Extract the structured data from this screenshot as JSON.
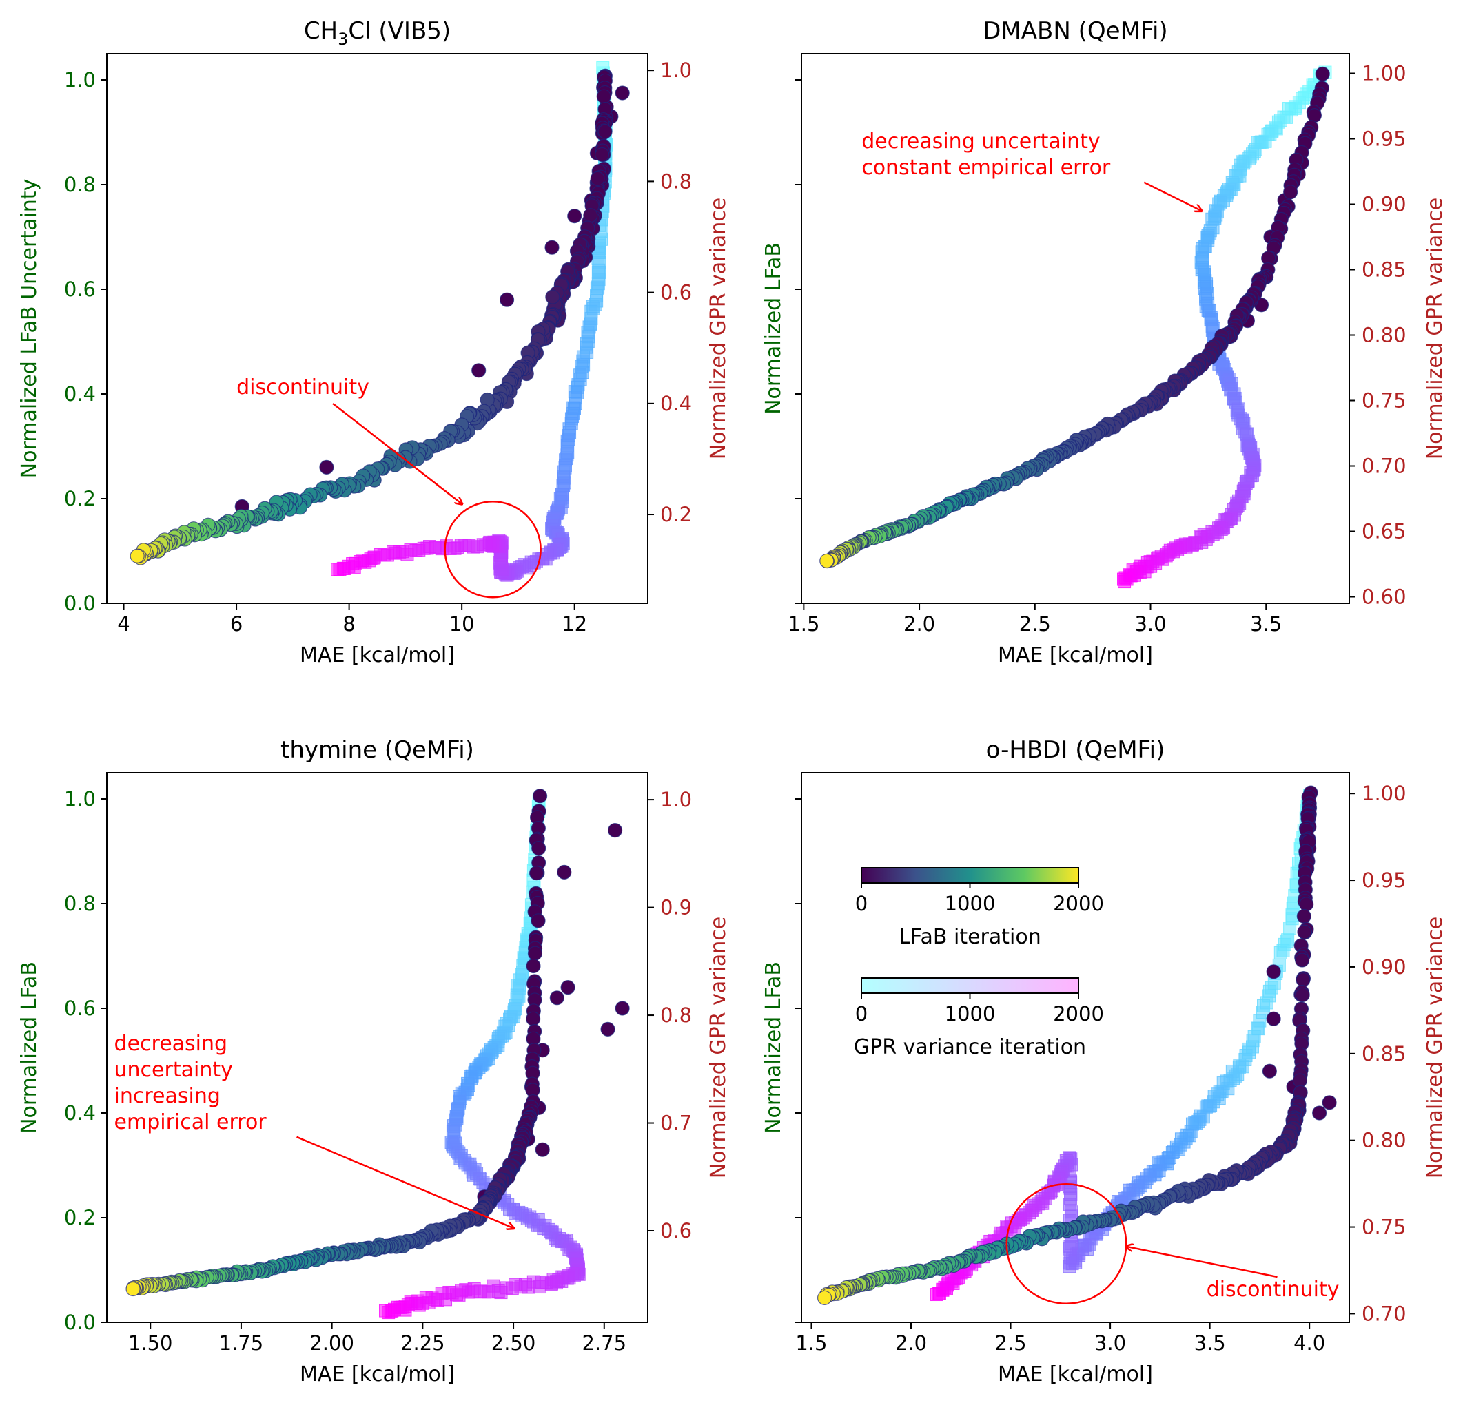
{
  "figure": {
    "colors": {
      "left_axis": "#006400",
      "right_axis": "#b22222",
      "annotation": "#ff0000",
      "lfab_cmap": [
        "#440154",
        "#3b528b",
        "#21918c",
        "#5ec962",
        "#fde725"
      ],
      "gpr_cmap": [
        "#b3ffff",
        "#ffb3ff"
      ],
      "gpr_square_cmap": [
        "#6fffff",
        "#50a0ff",
        "#9b59ff",
        "#ff00ff"
      ]
    },
    "colorbars": {
      "lfab": {
        "label": "LFaB iteration",
        "ticks": [
          "0",
          "1000",
          "2000"
        ],
        "range": [
          0,
          2000
        ]
      },
      "gpr": {
        "label": "GPR variance iteration",
        "ticks": [
          "0",
          "1000",
          "2000"
        ],
        "range": [
          0,
          2000
        ]
      }
    }
  },
  "chart_data": [
    {
      "type": "scatter",
      "title_main": "CH",
      "title_sub": "3",
      "title_rest": "Cl (VIB5)",
      "xlabel": "MAE [kcal/mol]",
      "ylabel": "Normalized LFaB Uncertainty",
      "ylabel_right": "Normalized GPR variance",
      "xlim": [
        3.7,
        13.3
      ],
      "ylim": [
        0.0,
        1.05
      ],
      "yrlim": [
        0.04,
        1.03
      ],
      "xticks": [
        4,
        6,
        8,
        10,
        12
      ],
      "xticklabels": [
        "4",
        "6",
        "8",
        "10",
        "12"
      ],
      "yticks": [
        0.0,
        0.2,
        0.4,
        0.6,
        0.8,
        1.0
      ],
      "yticklabels": [
        "0.0",
        "0.2",
        "0.4",
        "0.6",
        "0.8",
        "1.0"
      ],
      "show_left_ticklabels": true,
      "yrticks": [
        0.2,
        0.4,
        0.6,
        0.8,
        1.0
      ],
      "yrticklabels": [
        "0.2",
        "0.4",
        "0.6",
        "0.8",
        "1.0"
      ],
      "lfab_series": {
        "name": "LFaB iteration",
        "anchors": [
          [
            12.55,
            1.0
          ],
          [
            12.5,
            0.84
          ],
          [
            12.2,
            0.68
          ],
          [
            11.8,
            0.6
          ],
          [
            11.5,
            0.52
          ],
          [
            10.8,
            0.4
          ],
          [
            10.0,
            0.33
          ],
          [
            8.5,
            0.25
          ],
          [
            7.0,
            0.19
          ],
          [
            6.0,
            0.155
          ],
          [
            5.0,
            0.125
          ],
          [
            4.25,
            0.09
          ]
        ],
        "scatter": 0.035,
        "outliers": [
          [
            12.85,
            0.975
          ],
          [
            12.65,
            0.93
          ],
          [
            12.4,
            0.86
          ],
          [
            12.3,
            0.77
          ],
          [
            12.0,
            0.74
          ],
          [
            11.6,
            0.68
          ],
          [
            10.8,
            0.58
          ],
          [
            10.3,
            0.445
          ],
          [
            7.6,
            0.26
          ],
          [
            6.1,
            0.185
          ]
        ]
      },
      "gpr_series": {
        "name": "GPR variance iteration",
        "anchors": [
          [
            12.5,
            1.0
          ],
          [
            12.55,
            0.9
          ],
          [
            12.55,
            0.82
          ],
          [
            12.45,
            0.7
          ],
          [
            12.4,
            0.6
          ],
          [
            12.2,
            0.5
          ],
          [
            12.0,
            0.4
          ],
          [
            11.85,
            0.3
          ],
          [
            11.75,
            0.22
          ],
          [
            11.6,
            0.18
          ],
          [
            11.8,
            0.15
          ],
          [
            11.6,
            0.13
          ],
          [
            11.0,
            0.1
          ],
          [
            10.7,
            0.093
          ],
          [
            10.7,
            0.15
          ],
          [
            10.5,
            0.145
          ],
          [
            9.5,
            0.14
          ],
          [
            8.5,
            0.125
          ],
          [
            7.8,
            0.1
          ]
        ],
        "scatter": 0.008
      },
      "annotations": [
        {
          "text": [
            "discontinuity"
          ],
          "x": 6.0,
          "y": 0.4,
          "arrow_to": [
            10.0,
            0.19
          ],
          "align": "start"
        }
      ],
      "circle": {
        "cx": 10.55,
        "cy": 0.103,
        "r_x": 0.85
      }
    },
    {
      "type": "scatter",
      "title_main": "DMABN (QeMFi)",
      "title_sub": "",
      "title_rest": "",
      "xlabel": "MAE [kcal/mol]",
      "ylabel": "Normalized LFaB",
      "ylabel_right": "Normalized GPR variance",
      "xlim": [
        1.49,
        3.86
      ],
      "ylim": [
        0.0,
        1.05
      ],
      "yrlim": [
        0.595,
        1.015
      ],
      "xticks": [
        1.5,
        2.0,
        2.5,
        3.0,
        3.5
      ],
      "xticklabels": [
        "1.5",
        "2.0",
        "2.5",
        "3.0",
        "3.5"
      ],
      "yticks": [
        0.0,
        0.2,
        0.4,
        0.6,
        0.8,
        1.0
      ],
      "yticklabels": [
        "",
        "",
        "",
        "",
        "",
        ""
      ],
      "show_left_ticklabels": false,
      "yrticks": [
        0.6,
        0.65,
        0.7,
        0.75,
        0.8,
        0.85,
        0.9,
        0.95,
        1.0
      ],
      "yrticklabels": [
        "0.60",
        "0.65",
        "0.70",
        "0.75",
        "0.80",
        "0.85",
        "0.90",
        "0.95",
        "1.00"
      ],
      "lfab_series": {
        "name": "LFaB iteration",
        "anchors": [
          [
            3.75,
            1.0
          ],
          [
            3.5,
            0.63
          ],
          [
            3.35,
            0.52
          ],
          [
            3.2,
            0.45
          ],
          [
            3.0,
            0.38
          ],
          [
            2.7,
            0.31
          ],
          [
            2.5,
            0.26
          ],
          [
            2.2,
            0.2
          ],
          [
            1.95,
            0.15
          ],
          [
            1.75,
            0.12
          ],
          [
            1.6,
            0.08
          ]
        ],
        "scatter": 0.012,
        "outliers": [
          [
            3.64,
            0.82
          ],
          [
            3.58,
            0.77
          ],
          [
            3.52,
            0.7
          ],
          [
            3.48,
            0.57
          ],
          [
            3.42,
            0.54
          ]
        ]
      },
      "gpr_series": {
        "name": "GPR variance iteration",
        "anchors": [
          [
            3.75,
            1.0
          ],
          [
            3.55,
            0.96
          ],
          [
            3.4,
            0.93
          ],
          [
            3.3,
            0.9
          ],
          [
            3.22,
            0.86
          ],
          [
            3.25,
            0.82
          ],
          [
            3.3,
            0.78
          ],
          [
            3.35,
            0.76
          ],
          [
            3.42,
            0.72
          ],
          [
            3.45,
            0.7
          ],
          [
            3.38,
            0.67
          ],
          [
            3.3,
            0.65
          ],
          [
            3.15,
            0.64
          ],
          [
            3.0,
            0.625
          ],
          [
            2.88,
            0.613
          ]
        ],
        "scatter": 0.005
      },
      "annotations": [
        {
          "text": [
            "decreasing uncertainty",
            "constant empirical error"
          ],
          "x": 1.75,
          "y": 0.87,
          "arrow_to": [
            3.22,
            0.75
          ],
          "align": "start"
        }
      ],
      "circle": null
    },
    {
      "type": "scatter",
      "title_main": "thymine (QeMFi)",
      "title_sub": "",
      "title_rest": "",
      "xlabel": "MAE [kcal/mol]",
      "ylabel": "Normalized LFaB",
      "ylabel_right": "Normalized GPR variance",
      "xlim": [
        1.38,
        2.87
      ],
      "ylim": [
        0.0,
        1.05
      ],
      "yrlim": [
        0.515,
        1.025
      ],
      "xticks": [
        1.5,
        1.75,
        2.0,
        2.25,
        2.5,
        2.75
      ],
      "xticklabels": [
        "1.50",
        "1.75",
        "2.00",
        "2.25",
        "2.50",
        "2.75"
      ],
      "yticks": [
        0.0,
        0.2,
        0.4,
        0.6,
        0.8,
        1.0
      ],
      "yticklabels": [
        "0.0",
        "0.2",
        "0.4",
        "0.6",
        "0.8",
        "1.0"
      ],
      "show_left_ticklabels": true,
      "yrticks": [
        0.6,
        0.7,
        0.8,
        0.9,
        1.0
      ],
      "yrticklabels": [
        "0.6",
        "0.7",
        "0.8",
        "0.9",
        "1.0"
      ],
      "lfab_series": {
        "name": "LFaB iteration",
        "anchors": [
          [
            2.57,
            1.0
          ],
          [
            2.55,
            0.4
          ],
          [
            2.5,
            0.3
          ],
          [
            2.45,
            0.25
          ],
          [
            2.4,
            0.2
          ],
          [
            2.2,
            0.15
          ],
          [
            2.0,
            0.13
          ],
          [
            1.8,
            0.1
          ],
          [
            1.6,
            0.08
          ],
          [
            1.45,
            0.065
          ]
        ],
        "scatter": 0.012,
        "outliers": [
          [
            2.78,
            0.94
          ],
          [
            2.8,
            0.6
          ],
          [
            2.64,
            0.86
          ],
          [
            2.65,
            0.64
          ],
          [
            2.62,
            0.62
          ],
          [
            2.76,
            0.56
          ],
          [
            2.58,
            0.52
          ],
          [
            2.55,
            0.45
          ],
          [
            2.54,
            0.35
          ],
          [
            2.58,
            0.33
          ],
          [
            2.57,
            0.41
          ],
          [
            2.42,
            0.24
          ]
        ]
      },
      "gpr_series": {
        "name": "GPR variance iteration",
        "anchors": [
          [
            2.57,
            1.0
          ],
          [
            2.55,
            0.89
          ],
          [
            2.53,
            0.85
          ],
          [
            2.5,
            0.8
          ],
          [
            2.45,
            0.77
          ],
          [
            2.4,
            0.75
          ],
          [
            2.35,
            0.72
          ],
          [
            2.33,
            0.68
          ],
          [
            2.4,
            0.65
          ],
          [
            2.5,
            0.62
          ],
          [
            2.6,
            0.6
          ],
          [
            2.67,
            0.58
          ],
          [
            2.68,
            0.56
          ],
          [
            2.6,
            0.55
          ],
          [
            2.4,
            0.545
          ],
          [
            2.25,
            0.535
          ],
          [
            2.15,
            0.525
          ]
        ],
        "scatter": 0.005
      },
      "annotations": [
        {
          "text": [
            "decreasing",
            "uncertainty",
            "increasing",
            "empirical error"
          ],
          "x": 1.4,
          "y": 0.52,
          "arrow_to": [
            2.5,
            0.18
          ],
          "align": "start"
        }
      ],
      "circle": null
    },
    {
      "type": "scatter",
      "title_main": "o-HBDI (QeMFi)",
      "title_sub": "",
      "title_rest": "",
      "xlabel": "MAE [kcal/mol]",
      "ylabel": "Normalized LFaB",
      "ylabel_right": "Normalized GPR variance",
      "xlim": [
        1.45,
        4.2
      ],
      "ylim": [
        0.0,
        1.05
      ],
      "yrlim": [
        0.695,
        1.012
      ],
      "xticks": [
        1.5,
        2.0,
        2.5,
        3.0,
        3.5,
        4.0
      ],
      "xticklabels": [
        "1.5",
        "2.0",
        "2.5",
        "3.0",
        "3.5",
        "4.0"
      ],
      "yticks": [
        0.0,
        0.2,
        0.4,
        0.6,
        0.8,
        1.0
      ],
      "yticklabels": [
        "",
        "",
        "",
        "",
        "",
        ""
      ],
      "show_left_ticklabels": false,
      "yrticks": [
        0.7,
        0.75,
        0.8,
        0.85,
        0.9,
        0.95,
        1.0
      ],
      "yrticklabels": [
        "0.70",
        "0.75",
        "0.80",
        "0.85",
        "0.90",
        "0.95",
        "1.00"
      ],
      "lfab_series": {
        "name": "LFaB iteration",
        "anchors": [
          [
            4.0,
            1.0
          ],
          [
            3.98,
            0.86
          ],
          [
            3.95,
            0.42
          ],
          [
            3.9,
            0.35
          ],
          [
            3.7,
            0.29
          ],
          [
            3.4,
            0.25
          ],
          [
            3.0,
            0.2
          ],
          [
            2.6,
            0.16
          ],
          [
            2.2,
            0.11
          ],
          [
            1.8,
            0.08
          ],
          [
            1.57,
            0.05
          ]
        ],
        "scatter": 0.015,
        "outliers": [
          [
            3.82,
            0.67
          ],
          [
            3.82,
            0.58
          ],
          [
            3.8,
            0.48
          ],
          [
            4.1,
            0.42
          ],
          [
            4.05,
            0.4
          ],
          [
            3.92,
            0.45
          ]
        ]
      },
      "gpr_series": {
        "name": "GPR variance iteration",
        "anchors": [
          [
            4.0,
            1.0
          ],
          [
            3.9,
            0.92
          ],
          [
            3.7,
            0.85
          ],
          [
            3.5,
            0.82
          ],
          [
            3.3,
            0.79
          ],
          [
            3.1,
            0.77
          ],
          [
            2.95,
            0.75
          ],
          [
            2.8,
            0.728
          ],
          [
            2.8,
            0.79
          ],
          [
            2.7,
            0.77
          ],
          [
            2.5,
            0.75
          ],
          [
            2.3,
            0.73
          ],
          [
            2.13,
            0.71
          ]
        ],
        "scatter": 0.004
      },
      "annotations": [
        {
          "text": [
            "discontinuity"
          ],
          "x": 4.15,
          "y": 0.05,
          "arrow_to": [
            3.08,
            0.145
          ],
          "align": "end"
        }
      ],
      "circle": {
        "cx": 2.78,
        "cy": 0.15,
        "r_x": 0.3
      }
    }
  ]
}
